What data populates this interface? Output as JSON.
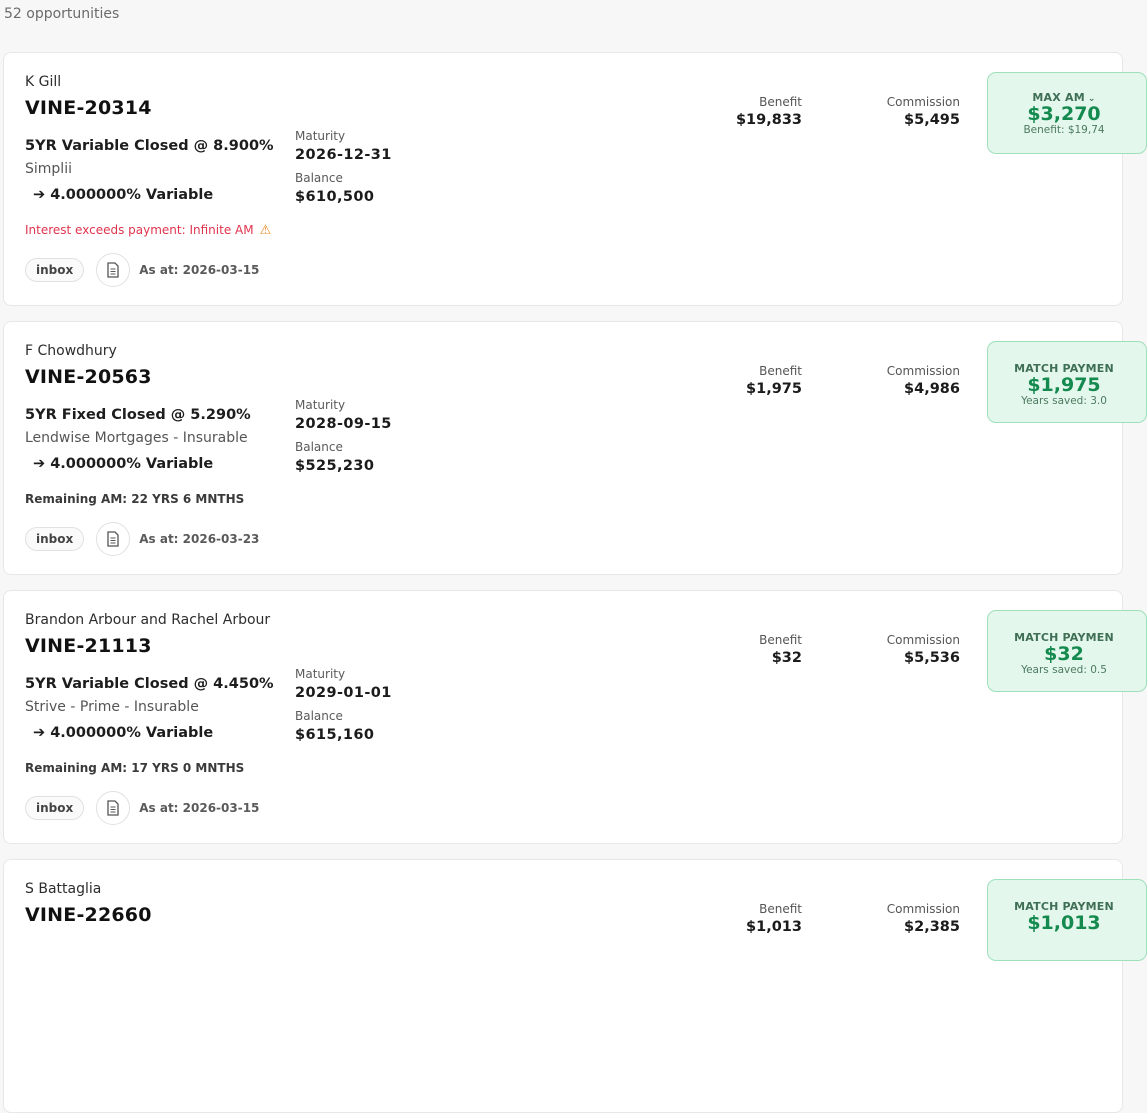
{
  "header": {
    "count": "52 opportunities"
  },
  "labels": {
    "maturity": "Maturity",
    "balance": "Balance",
    "benefit": "Benefit",
    "commission": "Commission"
  },
  "cards": [
    {
      "client": "K Gill",
      "ref": "VINE-20314",
      "product": "5YR Variable Closed @ 8.900%",
      "lender": "Simplii",
      "target": "➔ 4.000000% Variable",
      "note": "Interest exceeds payment: Infinite AM",
      "note_warning": true,
      "maturity": "2026-12-31",
      "balance": "$610,500",
      "benefit": "$19,833",
      "commission": "$5,495",
      "best_label": "MAX AM",
      "best_amount": "$3,270",
      "best_sub": "Benefit: $19,74",
      "tag": "inbox",
      "as_at": "As at: 2026-03-15"
    },
    {
      "client": "F Chowdhury",
      "ref": "VINE-20563",
      "product": "5YR Fixed Closed @ 5.290%",
      "lender": "Lendwise Mortgages - Insurable",
      "target": "➔ 4.000000% Variable",
      "note": "Remaining AM: 22 YRS 6 MNTHS",
      "note_warning": false,
      "maturity": "2028-09-15",
      "balance": "$525,230",
      "benefit": "$1,975",
      "commission": "$4,986",
      "best_label": "MATCH PAYMEN",
      "best_amount": "$1,975",
      "best_sub": "Years saved: 3.0",
      "tag": "inbox",
      "as_at": "As at: 2026-03-23"
    },
    {
      "client": "Brandon Arbour and Rachel Arbour",
      "ref": "VINE-21113",
      "product": "5YR Variable Closed @ 4.450%",
      "lender": "Strive - Prime - Insurable",
      "target": "➔ 4.000000% Variable",
      "note": "Remaining AM: 17 YRS 0 MNTHS",
      "note_warning": false,
      "maturity": "2029-01-01",
      "balance": "$615,160",
      "benefit": "$32",
      "commission": "$5,536",
      "best_label": "MATCH PAYMEN",
      "best_amount": "$32",
      "best_sub": "Years saved: 0.5",
      "tag": "inbox",
      "as_at": "As at: 2026-03-15"
    },
    {
      "client": "S Battaglia",
      "ref": "VINE-22660",
      "benefit_label_only": true,
      "benefit": "$1,013",
      "commission": "$2,385",
      "best_label": "MATCH PAYMEN",
      "best_amount": "$1,013"
    }
  ]
}
